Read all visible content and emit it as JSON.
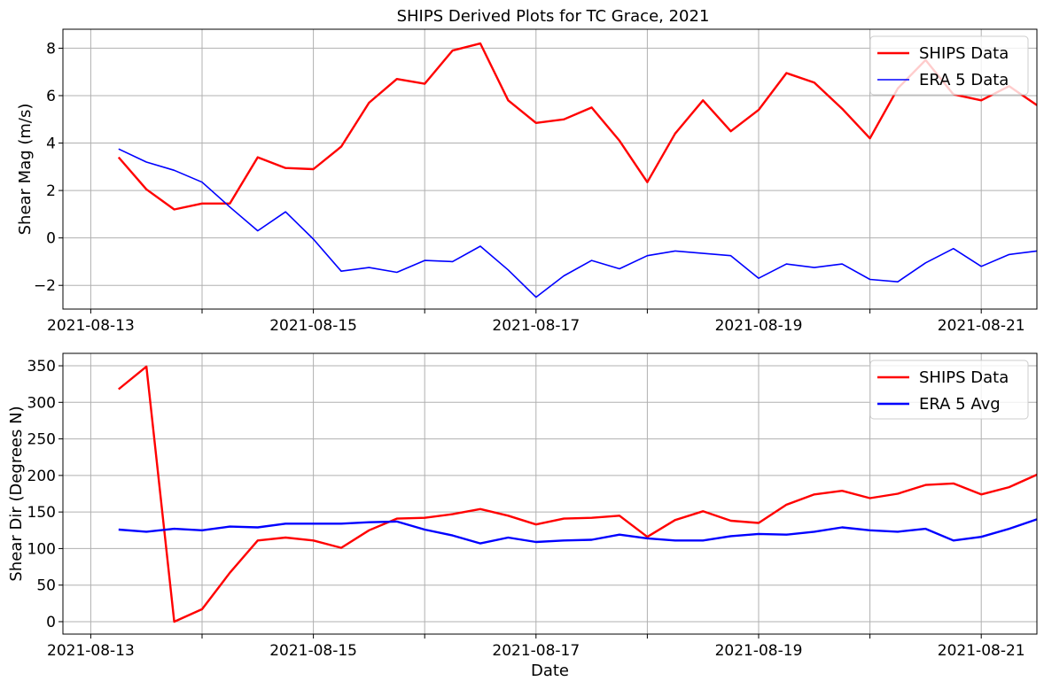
{
  "figure_title": "SHIPS Derived Plots for TC Grace, 2021",
  "chart_data": [
    {
      "type": "line",
      "title": "SHIPS Derived Plots for TC Grace, 2021",
      "xlabel": "",
      "ylabel": "Shear Mag (m/s)",
      "x_type": "date",
      "xlim": [
        "2021-08-12T18:00",
        "2021-08-21T12:00"
      ],
      "ylim": [
        -3.0,
        8.8
      ],
      "yticks": [
        -2,
        0,
        2,
        4,
        6,
        8
      ],
      "ytick_labels": [
        "−2",
        "0",
        "2",
        "4",
        "6",
        "8"
      ],
      "xtick_labels": [
        "2021-08-13",
        "2021-08-15",
        "2021-08-17",
        "2021-08-19",
        "2021-08-21"
      ],
      "grid": true,
      "legend_position": "top-right",
      "series": [
        {
          "name": "SHIPS Data",
          "color": "#ff0000",
          "x": [
            "2021-08-13T06:00",
            "2021-08-13T12:00",
            "2021-08-13T18:00",
            "2021-08-14T00:00",
            "2021-08-14T06:00",
            "2021-08-14T12:00",
            "2021-08-14T18:00",
            "2021-08-15T00:00",
            "2021-08-15T06:00",
            "2021-08-15T12:00",
            "2021-08-15T18:00",
            "2021-08-16T00:00",
            "2021-08-16T06:00",
            "2021-08-16T12:00",
            "2021-08-16T18:00",
            "2021-08-17T00:00",
            "2021-08-17T06:00",
            "2021-08-17T12:00",
            "2021-08-17T18:00",
            "2021-08-18T00:00",
            "2021-08-18T06:00",
            "2021-08-18T12:00",
            "2021-08-18T18:00",
            "2021-08-19T00:00",
            "2021-08-19T06:00",
            "2021-08-19T12:00",
            "2021-08-19T18:00",
            "2021-08-20T00:00",
            "2021-08-20T06:00",
            "2021-08-20T12:00",
            "2021-08-20T18:00",
            "2021-08-21T00:00",
            "2021-08-21T06:00",
            "2021-08-21T12:00"
          ],
          "y": [
            3.4,
            2.05,
            1.2,
            1.45,
            1.45,
            3.4,
            2.95,
            2.9,
            3.85,
            5.7,
            6.7,
            6.5,
            7.9,
            8.2,
            5.8,
            4.85,
            5.0,
            5.5,
            4.1,
            2.35,
            4.4,
            5.8,
            4.5,
            5.4,
            6.95,
            6.55,
            5.45,
            4.2,
            6.3,
            7.5,
            6.05,
            5.8,
            6.4,
            5.6
          ]
        },
        {
          "name": "ERA 5 Data",
          "color": "#0000ff",
          "x": [
            "2021-08-13T06:00",
            "2021-08-13T12:00",
            "2021-08-13T18:00",
            "2021-08-14T00:00",
            "2021-08-14T06:00",
            "2021-08-14T12:00",
            "2021-08-14T18:00",
            "2021-08-15T00:00",
            "2021-08-15T06:00",
            "2021-08-15T12:00",
            "2021-08-15T18:00",
            "2021-08-16T00:00",
            "2021-08-16T06:00",
            "2021-08-16T12:00",
            "2021-08-16T18:00",
            "2021-08-17T00:00",
            "2021-08-17T06:00",
            "2021-08-17T12:00",
            "2021-08-17T18:00",
            "2021-08-18T00:00",
            "2021-08-18T06:00",
            "2021-08-18T12:00",
            "2021-08-18T18:00",
            "2021-08-19T00:00",
            "2021-08-19T06:00",
            "2021-08-19T12:00",
            "2021-08-19T18:00",
            "2021-08-20T00:00",
            "2021-08-20T06:00",
            "2021-08-20T12:00",
            "2021-08-20T18:00",
            "2021-08-21T00:00",
            "2021-08-21T06:00",
            "2021-08-21T12:00"
          ],
          "y": [
            3.75,
            3.2,
            2.85,
            2.35,
            1.3,
            0.3,
            1.1,
            -0.05,
            -1.4,
            -1.25,
            -1.45,
            -0.95,
            -1.0,
            -0.35,
            -1.35,
            -2.5,
            -1.6,
            -0.95,
            -1.3,
            -0.75,
            -0.55,
            -0.65,
            -0.75,
            -1.7,
            -1.1,
            -1.25,
            -1.1,
            -1.75,
            -1.85,
            -1.05,
            -0.45,
            -1.2,
            -0.7,
            -0.55
          ]
        }
      ]
    },
    {
      "type": "line",
      "title": "",
      "xlabel": "Date",
      "ylabel": "Shear Dir (Degrees N)",
      "x_type": "date",
      "xlim": [
        "2021-08-12T18:00",
        "2021-08-21T12:00"
      ],
      "ylim": [
        -17,
        367
      ],
      "yticks": [
        0,
        50,
        100,
        150,
        200,
        250,
        300,
        350
      ],
      "ytick_labels": [
        "0",
        "50",
        "100",
        "150",
        "200",
        "250",
        "300",
        "350"
      ],
      "xtick_labels": [
        "2021-08-13",
        "2021-08-15",
        "2021-08-17",
        "2021-08-19",
        "2021-08-21"
      ],
      "grid": true,
      "legend_position": "top-right",
      "series": [
        {
          "name": "SHIPS Data",
          "color": "#ff0000",
          "x": [
            "2021-08-13T06:00",
            "2021-08-13T12:00",
            "2021-08-13T18:00",
            "2021-08-14T00:00",
            "2021-08-14T06:00",
            "2021-08-14T12:00",
            "2021-08-14T18:00",
            "2021-08-15T00:00",
            "2021-08-15T06:00",
            "2021-08-15T12:00",
            "2021-08-15T18:00",
            "2021-08-16T00:00",
            "2021-08-16T06:00",
            "2021-08-16T12:00",
            "2021-08-16T18:00",
            "2021-08-17T00:00",
            "2021-08-17T06:00",
            "2021-08-17T12:00",
            "2021-08-17T18:00",
            "2021-08-18T00:00",
            "2021-08-18T06:00",
            "2021-08-18T12:00",
            "2021-08-18T18:00",
            "2021-08-19T00:00",
            "2021-08-19T06:00",
            "2021-08-19T12:00",
            "2021-08-19T18:00",
            "2021-08-20T00:00",
            "2021-08-20T06:00",
            "2021-08-20T12:00",
            "2021-08-20T18:00",
            "2021-08-21T00:00",
            "2021-08-21T06:00",
            "2021-08-21T12:00"
          ],
          "y": [
            318,
            349,
            0,
            17,
            67,
            111,
            115,
            111,
            101,
            125,
            141,
            142,
            147,
            154,
            145,
            133,
            141,
            142,
            145,
            116,
            139,
            151,
            138,
            135,
            160,
            174,
            179,
            169,
            175,
            187,
            189,
            174,
            184,
            201
          ]
        },
        {
          "name": "ERA 5 Avg",
          "color": "#0000ff",
          "x": [
            "2021-08-13T06:00",
            "2021-08-13T12:00",
            "2021-08-13T18:00",
            "2021-08-14T00:00",
            "2021-08-14T06:00",
            "2021-08-14T12:00",
            "2021-08-14T18:00",
            "2021-08-15T00:00",
            "2021-08-15T06:00",
            "2021-08-15T12:00",
            "2021-08-15T18:00",
            "2021-08-16T00:00",
            "2021-08-16T06:00",
            "2021-08-16T12:00",
            "2021-08-16T18:00",
            "2021-08-17T00:00",
            "2021-08-17T06:00",
            "2021-08-17T12:00",
            "2021-08-17T18:00",
            "2021-08-18T00:00",
            "2021-08-18T06:00",
            "2021-08-18T12:00",
            "2021-08-18T18:00",
            "2021-08-19T00:00",
            "2021-08-19T06:00",
            "2021-08-19T12:00",
            "2021-08-19T18:00",
            "2021-08-20T00:00",
            "2021-08-20T06:00",
            "2021-08-20T12:00",
            "2021-08-20T18:00",
            "2021-08-21T00:00",
            "2021-08-21T06:00",
            "2021-08-21T12:00"
          ],
          "y": [
            126,
            123,
            127,
            125,
            130,
            129,
            134,
            134,
            134,
            136,
            137,
            126,
            118,
            107,
            115,
            109,
            111,
            112,
            119,
            114,
            111,
            111,
            117,
            120,
            119,
            123,
            129,
            125,
            123,
            127,
            111,
            116,
            127,
            140
          ]
        }
      ]
    }
  ]
}
